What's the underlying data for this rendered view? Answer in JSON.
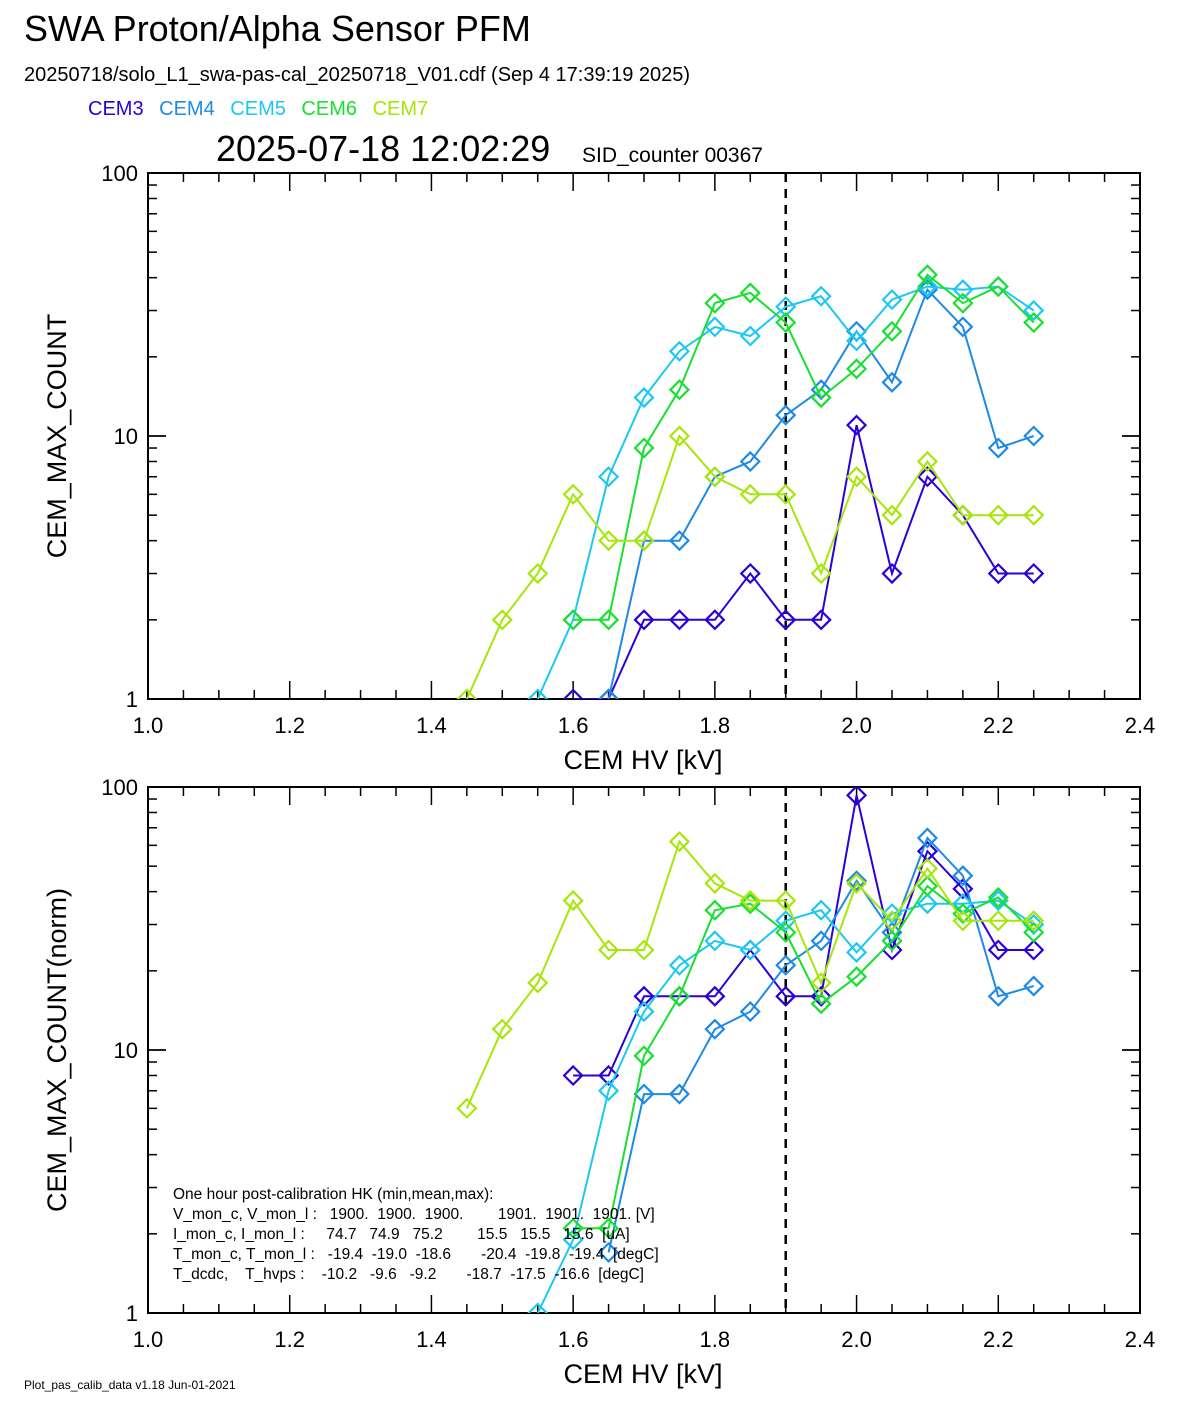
{
  "header": {
    "title": "SWA Proton/Alpha Sensor PFM",
    "subtitle": "20250718/solo_L1_swa-pas-cal_20250718_V01.cdf  (Sep  4 17:39:19 2025)",
    "timestamp": "2025-07-18 12:02:29",
    "sid_counter": "SID_counter 00367"
  },
  "legend": [
    {
      "label": "CEM3",
      "color": "#2c00d8"
    },
    {
      "label": "CEM4",
      "color": "#1e8ae6"
    },
    {
      "label": "CEM5",
      "color": "#1cc8f0"
    },
    {
      "label": "CEM6",
      "color": "#18e030"
    },
    {
      "label": "CEM7",
      "color": "#a6e60a"
    }
  ],
  "footer": "Plot_pas_calib_data v1.18 Jun-01-2021",
  "hk_box": [
    "One hour post-calibration HK (min,mean,max):",
    "V_mon_c, V_mon_l :   1900.  1900.  1900.        1901.  1901.  1901. [V]",
    "I_mon_c, I_mon_l :     74.7   74.9   75.2        15.5   15.5   15.6  [uA]",
    "T_mon_c, T_mon_l :   -19.4  -19.0  -18.6       -20.4  -19.8  -19.4  [degC]",
    "T_dcdc,    T_hvps :    -10.2   -9.6   -9.2       -18.7  -17.5  -16.6  [degC]"
  ],
  "chart_data": [
    {
      "type": "line",
      "xlabel": "CEM HV [kV]",
      "ylabel": "CEM_MAX_COUNT",
      "xlim": [
        1.0,
        2.4
      ],
      "ylim": [
        1,
        100
      ],
      "yscale": "log",
      "xticks": [
        "1.0",
        "1.2",
        "1.4",
        "1.6",
        "1.8",
        "2.0",
        "2.2",
        "2.4"
      ],
      "yticks": [
        "1",
        "10",
        "100"
      ],
      "vline": 1.9,
      "marker": "diamond",
      "series": [
        {
          "name": "CEM3",
          "x": [
            1.6,
            1.65,
            1.7,
            1.75,
            1.8,
            1.85,
            1.9,
            1.95,
            2.0,
            2.05,
            2.1,
            2.15,
            2.2,
            2.25
          ],
          "y": [
            1,
            1,
            2,
            2,
            2,
            3,
            2,
            2,
            11,
            3,
            7,
            5,
            3,
            3
          ]
        },
        {
          "name": "CEM4",
          "x": [
            1.65,
            1.7,
            1.75,
            1.8,
            1.85,
            1.9,
            1.95,
            2.0,
            2.05,
            2.1,
            2.15,
            2.2,
            2.25
          ],
          "y": [
            1,
            4,
            4,
            7,
            8,
            12,
            15,
            25,
            16,
            36,
            26,
            9,
            10
          ]
        },
        {
          "name": "CEM5",
          "x": [
            1.55,
            1.6,
            1.65,
            1.7,
            1.75,
            1.8,
            1.85,
            1.9,
            1.95,
            2.0,
            2.05,
            2.1,
            2.15,
            2.2,
            2.25
          ],
          "y": [
            1,
            2,
            7,
            14,
            21,
            26,
            24,
            31,
            34,
            23,
            33,
            37,
            36,
            37,
            30
          ]
        },
        {
          "name": "CEM6",
          "x": [
            1.6,
            1.65,
            1.7,
            1.75,
            1.8,
            1.85,
            1.9,
            1.95,
            2.0,
            2.05,
            2.1,
            2.15,
            2.2,
            2.25
          ],
          "y": [
            2,
            2,
            9,
            15,
            32,
            35,
            27,
            14,
            18,
            25,
            41,
            32,
            37,
            27
          ]
        },
        {
          "name": "CEM7",
          "x": [
            1.45,
            1.5,
            1.55,
            1.6,
            1.65,
            1.7,
            1.75,
            1.8,
            1.85,
            1.9,
            1.95,
            2.0,
            2.05,
            2.1,
            2.15,
            2.2,
            2.25
          ],
          "y": [
            1,
            2,
            3,
            6,
            4,
            4,
            10,
            7,
            6,
            6,
            3,
            7,
            5,
            8,
            5,
            5,
            5
          ]
        }
      ]
    },
    {
      "type": "line",
      "xlabel": "CEM HV [kV]",
      "ylabel": "CEM_MAX_COUNT(norm)",
      "xlim": [
        1.0,
        2.4
      ],
      "ylim": [
        1,
        100
      ],
      "yscale": "log",
      "xticks": [
        "1.0",
        "1.2",
        "1.4",
        "1.6",
        "1.8",
        "2.0",
        "2.2",
        "2.4"
      ],
      "yticks": [
        "1",
        "10",
        "100"
      ],
      "vline": 1.9,
      "marker": "diamond",
      "series": [
        {
          "name": "CEM3",
          "x": [
            1.6,
            1.65,
            1.7,
            1.75,
            1.8,
            1.85,
            1.9,
            1.95,
            2.0,
            2.05,
            2.1,
            2.15,
            2.2,
            2.25
          ],
          "y": [
            8,
            8,
            16,
            16,
            16,
            24,
            16,
            16,
            93,
            24,
            57,
            41,
            24,
            24
          ]
        },
        {
          "name": "CEM4",
          "x": [
            1.65,
            1.7,
            1.75,
            1.8,
            1.85,
            1.9,
            1.95,
            2.0,
            2.05,
            2.1,
            2.15,
            2.2,
            2.25
          ],
          "y": [
            1.7,
            6.8,
            6.8,
            12,
            14,
            21,
            26,
            44,
            28,
            64,
            46,
            16,
            17.5
          ]
        },
        {
          "name": "CEM5",
          "x": [
            1.55,
            1.6,
            1.65,
            1.7,
            1.75,
            1.8,
            1.85,
            1.9,
            1.95,
            2.0,
            2.05,
            2.1,
            2.15,
            2.2,
            2.25
          ],
          "y": [
            1,
            1.9,
            7,
            14,
            21,
            26,
            24,
            31,
            34,
            23.5,
            33,
            36,
            36,
            37,
            30
          ]
        },
        {
          "name": "CEM6",
          "x": [
            1.6,
            1.65,
            1.7,
            1.75,
            1.8,
            1.85,
            1.9,
            1.95,
            2.0,
            2.05,
            2.1,
            2.15,
            2.2,
            2.25
          ],
          "y": [
            2.1,
            2.1,
            9.5,
            16,
            34,
            36,
            28,
            15,
            19,
            26,
            42,
            33,
            38,
            28
          ]
        },
        {
          "name": "CEM7",
          "x": [
            1.45,
            1.5,
            1.55,
            1.6,
            1.65,
            1.7,
            1.75,
            1.8,
            1.85,
            1.9,
            1.95,
            2.0,
            2.05,
            2.1,
            2.15,
            2.2,
            2.25
          ],
          "y": [
            6,
            12,
            18,
            37,
            24,
            24,
            62,
            43,
            37,
            37,
            18,
            43,
            31,
            49,
            31,
            31,
            31
          ]
        }
      ]
    }
  ]
}
